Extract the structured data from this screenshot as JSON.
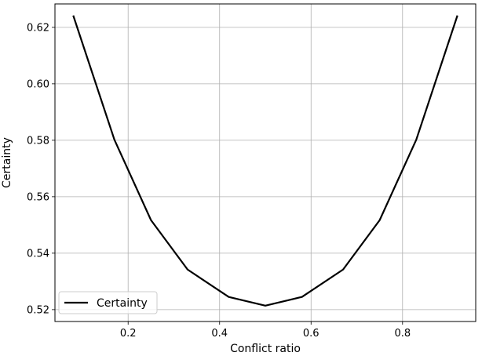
{
  "chart_data": {
    "type": "line",
    "xlabel": "Conflict ratio",
    "ylabel": "Certainty",
    "xlim": [
      0.04,
      0.96
    ],
    "ylim": [
      0.5158,
      0.6283
    ],
    "xticks": [
      0.2,
      0.4,
      0.6,
      0.8
    ],
    "xtick_labels": [
      "0.2",
      "0.4",
      "0.6",
      "0.8"
    ],
    "yticks": [
      0.52,
      0.54,
      0.56,
      0.58,
      0.6,
      0.62
    ],
    "ytick_labels": [
      "0.52",
      "0.54",
      "0.56",
      "0.58",
      "0.60",
      "0.62"
    ],
    "grid": true,
    "legend_position": "lower-left",
    "series": [
      {
        "name": "Certainty",
        "color": "#000000",
        "x": [
          0.08,
          0.17,
          0.25,
          0.33,
          0.42,
          0.5,
          0.58,
          0.67,
          0.75,
          0.83,
          0.92
        ],
        "y": [
          0.6242,
          0.5802,
          0.5517,
          0.5342,
          0.5245,
          0.5214,
          0.5245,
          0.5342,
          0.5517,
          0.5802,
          0.6242
        ]
      }
    ]
  }
}
